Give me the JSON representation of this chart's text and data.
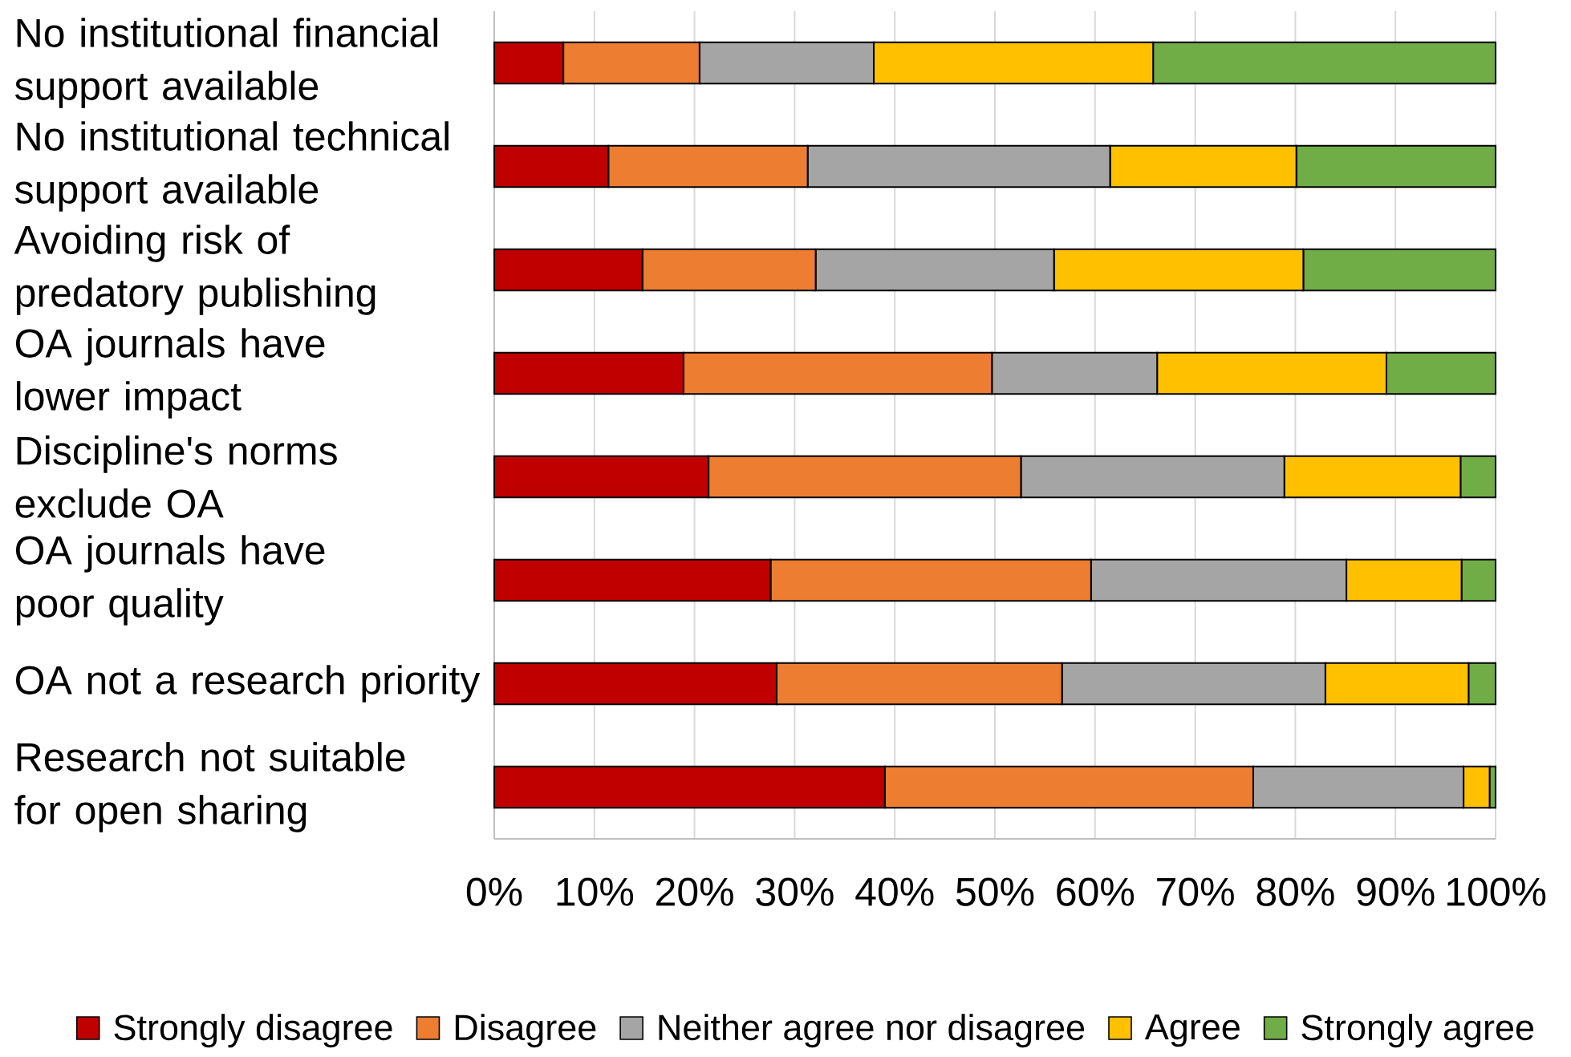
{
  "chart_data": {
    "type": "bar",
    "orientation": "horizontal",
    "stacked": true,
    "categories": [
      "No institutional financial support available",
      "No institutional technical support available",
      "Avoiding risk of predatory publishing",
      "OA journals have lower impact",
      "Discipline's norms exclude OA",
      "OA journals have poor quality",
      "OA not a research priority",
      "Research not suitable for open sharing"
    ],
    "series": [
      {
        "name": "Strongly disagree",
        "color": "#c00000",
        "values": [
          6.9,
          11.4,
          14.8,
          18.9,
          21.4,
          27.6,
          28.2,
          39.0
        ]
      },
      {
        "name": "Disagree",
        "color": "#ed7d31",
        "values": [
          13.6,
          19.9,
          17.3,
          30.8,
          31.2,
          32.0,
          28.5,
          36.8
        ]
      },
      {
        "name": "Neither agree nor disagree",
        "color": "#a5a5a5",
        "values": [
          17.4,
          30.2,
          23.8,
          16.5,
          26.3,
          25.5,
          26.3,
          21.0
        ]
      },
      {
        "name": "Agree",
        "color": "#ffc000",
        "values": [
          27.9,
          18.6,
          24.9,
          22.9,
          17.6,
          11.5,
          14.3,
          2.6
        ]
      },
      {
        "name": "Strongly agree",
        "color": "#70ad47",
        "values": [
          34.2,
          19.9,
          19.2,
          10.9,
          3.5,
          3.4,
          2.7,
          0.6
        ]
      }
    ],
    "xlim": [
      0,
      100
    ],
    "xticks": [
      {
        "value": 0,
        "label": "0%"
      },
      {
        "value": 10,
        "label": "10%"
      },
      {
        "value": 20,
        "label": "20%"
      },
      {
        "value": 30,
        "label": "30%"
      },
      {
        "value": 40,
        "label": "40%"
      },
      {
        "value": 50,
        "label": "50%"
      },
      {
        "value": 60,
        "label": "60%"
      },
      {
        "value": 70,
        "label": "70%"
      },
      {
        "value": 80,
        "label": "80%"
      },
      {
        "value": 90,
        "label": "90%"
      },
      {
        "value": 100,
        "label": "100%"
      }
    ],
    "grid": "x",
    "legend": "bottom"
  }
}
